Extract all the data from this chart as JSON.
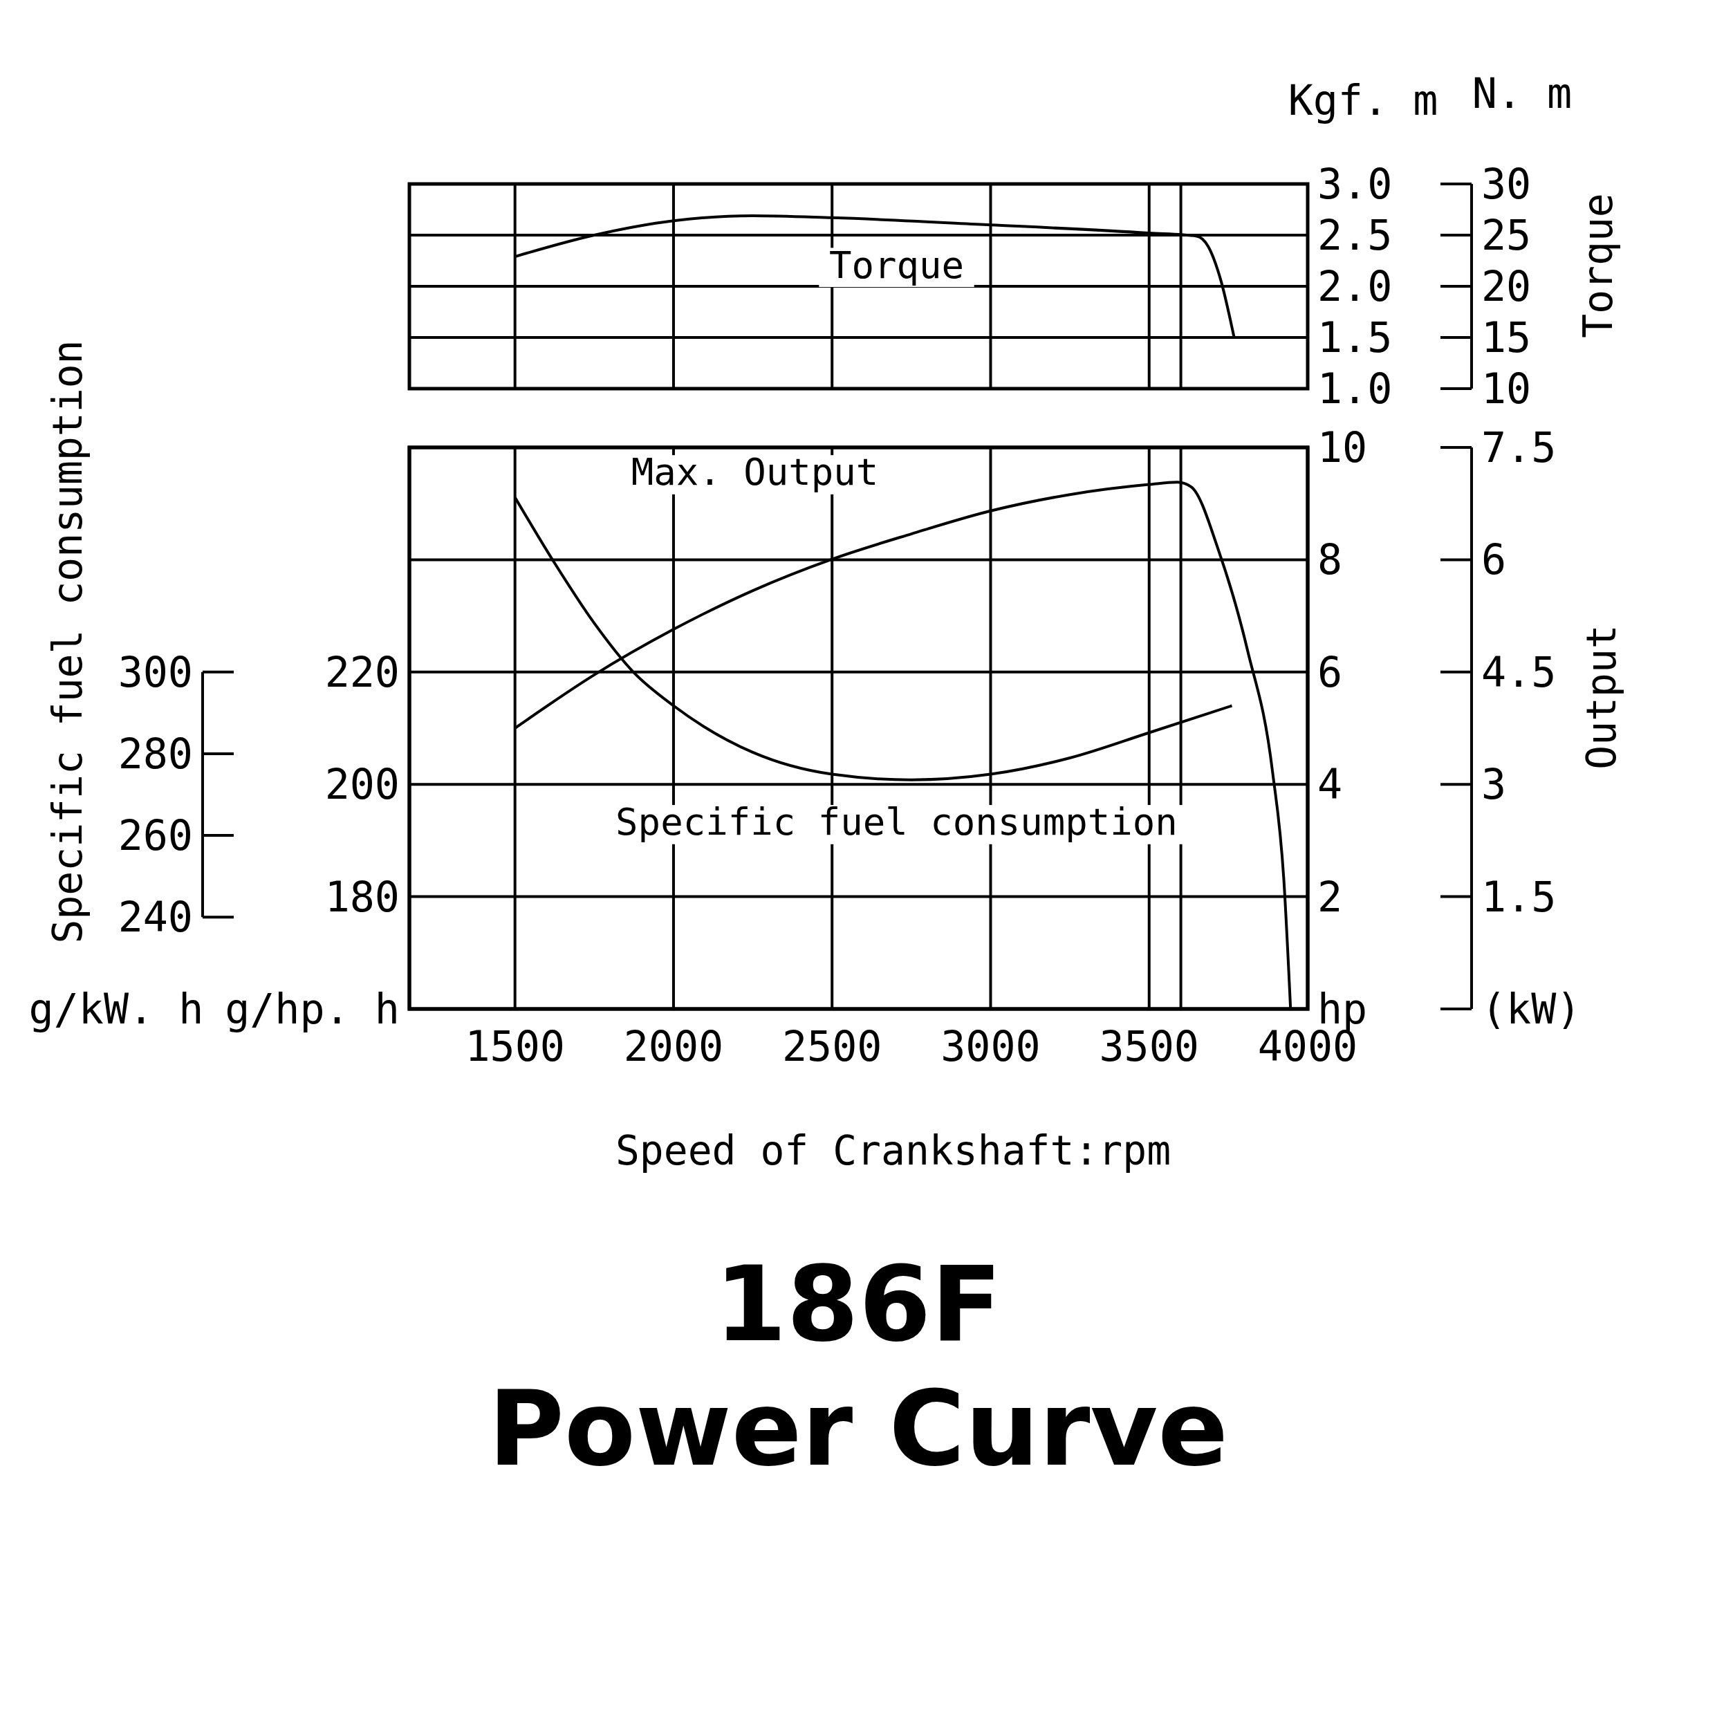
{
  "chart_data": [
    {
      "type": "line",
      "xlim": [
        1167,
        4000
      ],
      "xticks": [
        1500,
        2000,
        2500,
        3000,
        3500,
        4000
      ],
      "ylim": [
        1,
        3
      ],
      "yticks": [
        {
          "value": 1,
          "label": "1.0"
        },
        {
          "value": 1.5,
          "label": "1.5"
        },
        {
          "value": 2,
          "label": "2.0"
        },
        {
          "value": 2.5,
          "label": "2.5"
        },
        {
          "value": 3,
          "label": "3.0"
        }
      ],
      "y2lim": [
        10,
        30
      ],
      "y2ticks": [
        10,
        15,
        20,
        25,
        30
      ],
      "ylabel": "Kgf. m",
      "y2label": "N. m",
      "annotations": [
        "Torque"
      ],
      "grid": true,
      "tick_labels": "y",
      "ref_lines": [
        {
          "axis": "x",
          "value": 3600
        }
      ],
      "series": [
        {
          "name": "Torque",
          "color": "#000000",
          "x": [
            1500,
            1750,
            2000,
            2250,
            2500,
            3000,
            3500,
            3650,
            3686,
            3725,
            3768
          ],
          "values": [
            2.29,
            2.5,
            2.64,
            2.69,
            2.67,
            2.6,
            2.52,
            2.49,
            2.39,
            2.07,
            1.5
          ]
        }
      ]
    },
    {
      "type": "line",
      "xlim": [
        1167,
        4000
      ],
      "tick_labels": "y",
      "ylim": [
        160,
        260
      ],
      "yticks": [
        {
          "value": 160,
          "label": "g/hp. h"
        },
        180,
        200,
        220
      ],
      "y2lim": [
        217.5,
        355
      ],
      "y2ticks": [
        240,
        260,
        280,
        300
      ],
      "y2label": "Specific fuel consumption",
      "annotations": [
        "g/kW. h"
      ],
      "series": [
        {
          "name": "Specific fuel consumption",
          "color": "#000000",
          "x": [
            1500,
            1625,
            1750,
            1875,
            2000,
            2250,
            2500,
            2750,
            3000,
            3250,
            3500,
            3761
          ],
          "values": [
            251.1,
            239.4,
            228.7,
            219.9,
            214.0,
            205.7,
            201.8,
            200.8,
            201.8,
            204.7,
            209.2,
            214.0
          ]
        }
      ]
    },
    {
      "type": "line",
      "title": "186F",
      "subtitle": "Power Curve",
      "xlabel": "Speed of Crankshaft:rpm",
      "xlim": [
        1167,
        4000
      ],
      "xticks": [
        1500,
        2000,
        2500,
        3000,
        3500,
        4000
      ],
      "ylim": [
        0,
        10
      ],
      "yticks": [
        {
          "value": 0,
          "label": "hp"
        },
        2,
        4,
        6,
        8,
        10
      ],
      "y2lim": [
        0,
        7.5
      ],
      "y2ticks": [
        {
          "value": 0,
          "label": "(kW)"
        },
        1.5,
        3,
        4.5,
        6,
        7.5
      ],
      "y2label": "Output",
      "grid": true,
      "ref_lines": [
        {
          "axis": "x",
          "value": 3600
        }
      ],
      "series": [
        {
          "name": "Max. Output",
          "color": "#000000",
          "x": [
            1500,
            1750,
            2000,
            2250,
            2500,
            2750,
            3000,
            3250,
            3500,
            3589,
            3632,
            3721,
            3811,
            3889,
            3925,
            3946
          ],
          "values": [
            5.0,
            5.95,
            6.76,
            7.45,
            8.01,
            8.46,
            8.87,
            9.16,
            9.34,
            9.38,
            9.3,
            8.13,
            6.37,
            4.23,
            2.28,
            0
          ]
        }
      ]
    }
  ]
}
